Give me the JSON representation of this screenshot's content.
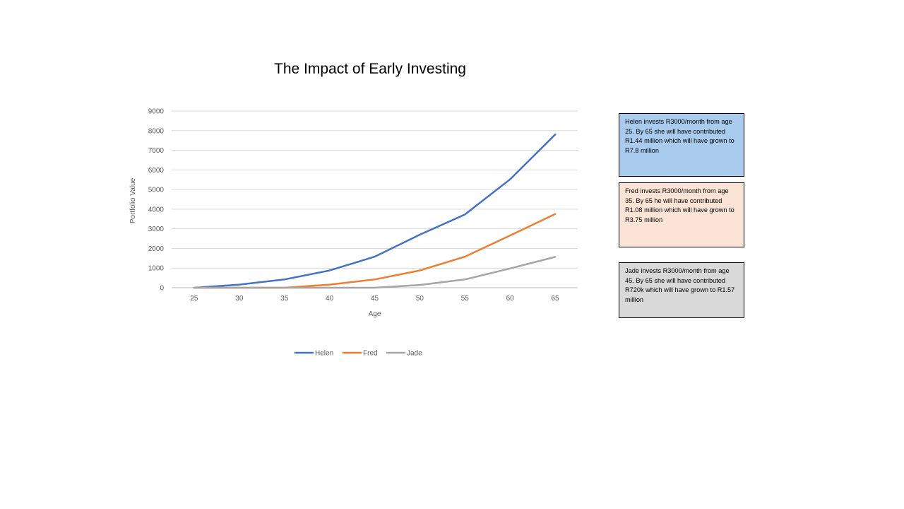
{
  "chart_data": {
    "type": "line",
    "title": "The Impact of Early Investing",
    "xlabel": "Age",
    "ylabel": "Portfolio Value",
    "x": [
      25,
      30,
      35,
      40,
      45,
      50,
      55,
      60,
      65
    ],
    "ylim": [
      0,
      9000
    ],
    "yticks": [
      0,
      1000,
      2000,
      3000,
      4000,
      5000,
      6000,
      7000,
      8000,
      9000
    ],
    "grid": true,
    "legend": "bottom",
    "series": [
      {
        "name": "Helen",
        "color": "#4472C4",
        "values": [
          0,
          160,
          420,
          880,
          1580,
          2700,
          3730,
          5520,
          7800
        ]
      },
      {
        "name": "Fred",
        "color": "#ED7D31",
        "values": [
          0,
          0,
          0,
          160,
          420,
          880,
          1580,
          2660,
          3750
        ]
      },
      {
        "name": "Jade",
        "color": "#A5A5A5",
        "values": [
          0,
          0,
          0,
          0,
          0,
          140,
          420,
          980,
          1570
        ]
      }
    ]
  },
  "notes": [
    {
      "text": "Helen invests R3000/month from age 25. By 65 she will have contributed R1.44 million which will have grown to R7.8 million",
      "bg": "#A9CBEE"
    },
    {
      "text": "Fred invests R3000/month from age 35. By 65 he will have contributed R1.08 million which will have grown to R3.75 million",
      "bg": "#FBE3D6"
    },
    {
      "text": "Jade invests R3000/month from age 45. By 65 she will have contributed R720k which will have grown to R1.57 million",
      "bg": "#D9D9D9"
    }
  ]
}
